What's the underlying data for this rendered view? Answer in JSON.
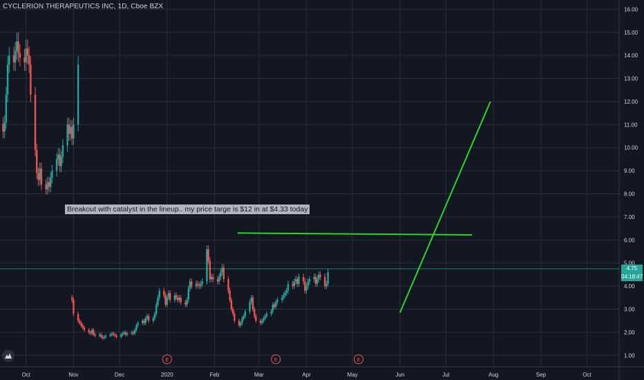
{
  "header": {
    "title": "CYCLERION THERAPEUTICS INC, 1D, Cboe BZX"
  },
  "price_tag": {
    "last_price": "4.75",
    "countdown": "04:18:47"
  },
  "annotation": {
    "text": "Breakout with catalyst in the lineup.. my price targe is $12 in at $4.33 today"
  },
  "events": [
    {
      "label": "E",
      "date": "2020-01-01"
    },
    {
      "label": "E",
      "date": "2020-03-12"
    },
    {
      "label": "E",
      "date": "2020-05-05"
    }
  ],
  "colors": {
    "background": "#131722",
    "grid": "#2a2e39",
    "axis_text": "#d1d4dc",
    "candle_up": "#26a69a",
    "candle_down": "#ef5350",
    "trendline": "#2bd62b",
    "annotation_bg": "#b2b5be"
  },
  "chart_data": {
    "type": "candlestick",
    "title": "CYCLERION THERAPEUTICS INC, 1D, Cboe BZX",
    "ylim": [
      0.5,
      16.4
    ],
    "xlim": [
      "2019-09-14",
      "2020-10-22"
    ],
    "y_ticks": [
      "1.00",
      "2.00",
      "3.00",
      "4.00",
      "5.00",
      "6.00",
      "7.00",
      "8.00",
      "9.00",
      "10.00",
      "11.00",
      "12.00",
      "13.00",
      "14.00",
      "15.00",
      "16.00"
    ],
    "x_ticks": [
      {
        "label": "Oct",
        "date": "2019-10-01"
      },
      {
        "label": "Nov",
        "date": "2019-11-01"
      },
      {
        "label": "Dec",
        "date": "2019-12-01"
      },
      {
        "label": "2020",
        "date": "2020-01-01"
      },
      {
        "label": "Feb",
        "date": "2020-02-01"
      },
      {
        "label": "Mar",
        "date": "2020-03-01"
      },
      {
        "label": "Apr",
        "date": "2020-04-01"
      },
      {
        "label": "May",
        "date": "2020-05-01"
      },
      {
        "label": "Jun",
        "date": "2020-06-01"
      },
      {
        "label": "Jul",
        "date": "2020-07-01"
      },
      {
        "label": "Aug",
        "date": "2020-08-01"
      },
      {
        "label": "Sep",
        "date": "2020-09-01"
      },
      {
        "label": "Oct",
        "date": "2020-10-01"
      }
    ],
    "last_price_line": 4.75,
    "grid": true,
    "trendlines": [
      {
        "name": "",
        "x1": "2020-02-16",
        "y1": 6.3,
        "x2": "2020-07-18",
        "y2": 6.22
      },
      {
        "name": "",
        "x1": "2020-06-01",
        "y1": 2.85,
        "x2": "2020-07-30",
        "y2": 12.0
      }
    ],
    "segments": [
      {
        "start": "2019-09-16",
        "closes": [
          10.7,
          11.1,
          12.3,
          13.6,
          14.0,
          13.7,
          14.2,
          14.6,
          14.1,
          13.9,
          13.7,
          14.3,
          14.0,
          13.6,
          12.3,
          9.9,
          8.9,
          8.6,
          9.1,
          8.4,
          8.2,
          8.5,
          8.3,
          8.7,
          9.0,
          9.5,
          9.7,
          9.2,
          9.6,
          10.1,
          11.0,
          10.6,
          10.9,
          10.4,
          11.0,
          13.6
        ]
      },
      {
        "start": "2019-10-31",
        "closes": [
          3.4,
          2.8,
          2.5,
          2.4,
          2.3,
          2.2,
          2.1,
          2.0,
          1.95,
          2.1,
          1.9,
          1.85,
          1.9,
          1.8,
          1.75,
          1.8,
          1.85,
          1.9,
          1.95,
          1.9,
          1.85,
          1.8,
          1.9,
          1.95,
          2.0,
          1.9,
          1.95,
          2.0,
          1.95,
          2.1,
          2.3,
          2.4,
          2.5,
          2.4,
          2.6,
          2.7,
          2.5,
          2.6,
          2.8,
          3.2,
          3.5,
          3.8,
          3.6,
          3.2,
          3.5,
          3.7,
          3.4,
          3.6,
          3.5,
          3.4,
          3.5,
          3.3,
          3.2,
          3.4,
          3.9,
          4.2,
          4.0,
          4.1,
          4.05,
          4.0,
          4.1,
          4.2,
          5.6,
          5.1,
          4.3,
          4.4,
          4.3,
          4.2,
          4.4,
          4.6,
          4.8,
          4.3,
          3.8,
          3.4,
          3.0,
          2.8,
          2.5,
          2.3,
          2.4,
          2.6,
          2.7,
          2.9,
          3.3,
          3.5,
          3.0,
          2.7,
          2.5,
          2.4,
          2.5,
          2.6,
          2.7,
          2.8,
          2.9,
          3.2,
          3.1,
          3.3,
          3.4,
          3.5,
          3.6,
          3.7,
          3.8,
          4.1,
          4.0,
          4.2,
          4.3,
          4.1,
          4.4,
          4.2,
          3.8,
          4.0,
          4.2,
          4.3,
          4.4,
          4.1,
          4.3,
          4.5,
          4.4,
          4.0,
          4.1,
          4.6
        ]
      }
    ]
  }
}
